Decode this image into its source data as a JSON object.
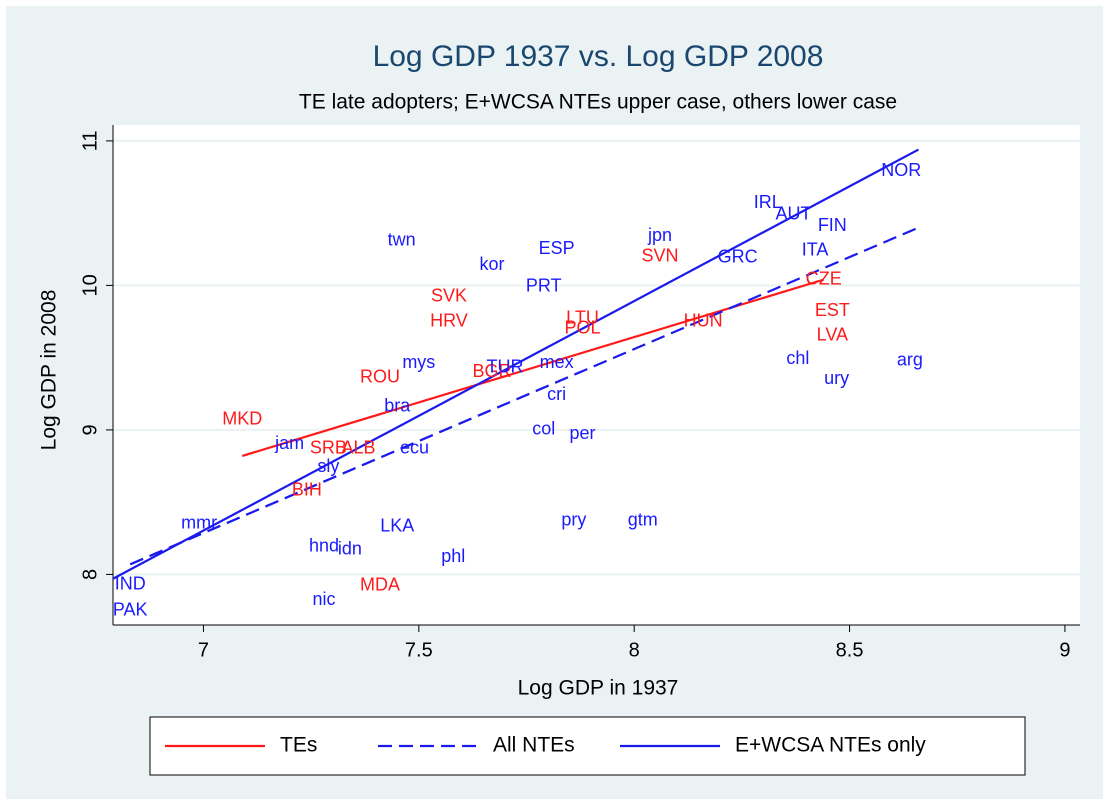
{
  "chart_data": {
    "type": "labeled-scatter",
    "title": "Log GDP 1937 vs. Log GDP 2008",
    "subtitle": "TE late adopters; E+WCSA NTEs upper case, others lower case",
    "x_label": "Log GDP in 1937",
    "y_label": "Log GDP in 2008",
    "xlim": [
      6.79,
      9.035
    ],
    "ylim": [
      7.65,
      11.11
    ],
    "xticks": [
      7,
      7.5,
      8,
      8.5,
      9
    ],
    "yticks": [
      8,
      9,
      10,
      11
    ],
    "grid": true,
    "point_groups": [
      {
        "color": "#ff1a1a",
        "labels": [
          "SVN",
          "CZE",
          "SVK",
          "HRV",
          "LTU",
          "POL",
          "HUN",
          "EST",
          "LVA",
          "ROU",
          "BGR",
          "MKD",
          "SRB",
          "ALB",
          "BIH",
          "MDA"
        ],
        "x": [
          8.06,
          8.44,
          7.57,
          7.57,
          7.88,
          7.88,
          8.16,
          8.46,
          8.46,
          7.41,
          7.67,
          7.09,
          7.29,
          7.36,
          7.24,
          7.41
        ],
        "y": [
          10.2,
          10.04,
          9.92,
          9.75,
          9.77,
          9.7,
          9.75,
          9.82,
          9.65,
          9.36,
          9.4,
          9.07,
          8.87,
          8.87,
          8.58,
          7.92
        ]
      },
      {
        "color": "#1a1aff",
        "labels": [
          "NOR",
          "IRL",
          "AUT",
          "FIN",
          "jpn",
          "ESP",
          "twn",
          "kor",
          "GRC",
          "ITA",
          "PRT",
          "chl",
          "arg",
          "ury",
          "mys",
          "TUR",
          "mex",
          "cri",
          "bra",
          "col",
          "per",
          "jam",
          "ecu",
          "sly",
          "mmr",
          "LKA",
          "pry",
          "gtm",
          "hnd",
          "idn",
          "phl",
          "IND",
          "PAK",
          "nic"
        ],
        "x": [
          8.62,
          8.31,
          8.37,
          8.46,
          8.06,
          7.82,
          7.46,
          7.67,
          8.24,
          8.42,
          7.79,
          8.38,
          8.64,
          8.47,
          7.5,
          7.7,
          7.82,
          7.82,
          7.45,
          7.79,
          7.88,
          7.2,
          7.49,
          7.29,
          6.99,
          7.45,
          7.86,
          8.02,
          7.28,
          7.34,
          7.58,
          6.83,
          6.83,
          7.28
        ],
        "y": [
          10.79,
          10.57,
          10.49,
          10.41,
          10.34,
          10.25,
          10.31,
          10.14,
          10.19,
          10.24,
          9.99,
          9.49,
          9.48,
          9.35,
          9.46,
          9.43,
          9.46,
          9.24,
          9.16,
          9.0,
          8.97,
          8.9,
          8.87,
          8.74,
          8.35,
          8.33,
          8.37,
          8.37,
          8.19,
          8.17,
          8.12,
          7.93,
          7.75,
          7.82
        ]
      }
    ],
    "fit_lines": [
      {
        "name": "TEs",
        "color": "#ff1a1a",
        "dashed": false,
        "x": [
          7.09,
          8.44
        ],
        "y": [
          8.82,
          10.04
        ]
      },
      {
        "name": "All NTEs",
        "color": "#1a1aee",
        "dashed": true,
        "x": [
          6.83,
          8.66
        ],
        "y": [
          8.07,
          10.4
        ]
      },
      {
        "name": "E+WCSA NTEs only",
        "color": "#1a1aee",
        "dashed": false,
        "x": [
          6.79,
          8.66
        ],
        "y": [
          7.97,
          10.94
        ]
      }
    ]
  }
}
